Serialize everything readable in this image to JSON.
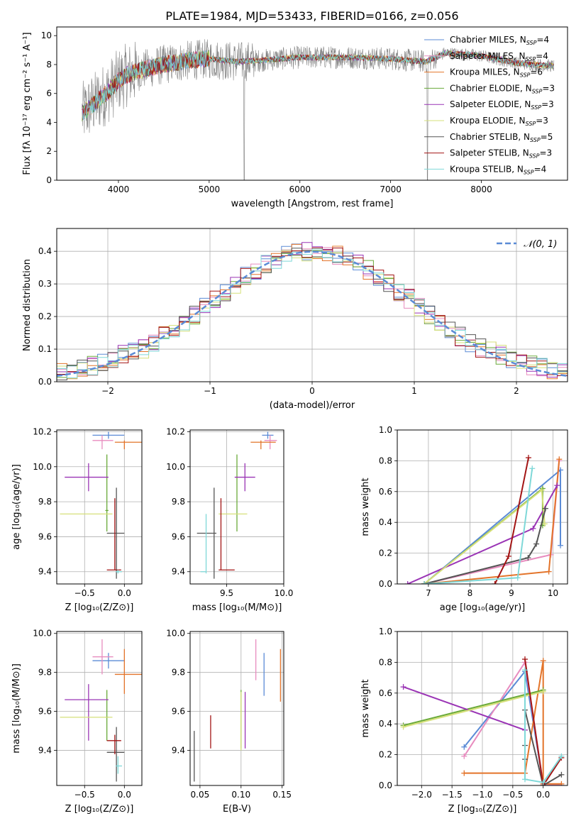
{
  "figure_title": "PLATE=1984, MJD=53433, FIBERID=0166, z=0.056",
  "colors": {
    "Chabrier MILES": "#5b8bd6",
    "Salpeter MILES": "#e88cbf",
    "Kroupa MILES": "#e3742a",
    "Chabrier ELODIE": "#6aaa3a",
    "Salpeter ELODIE": "#9a34b5",
    "Kroupa ELODIE": "#d6e07a",
    "Chabrier STELIB": "#555555",
    "Salpeter STELIB": "#a31515",
    "Kroupa STELIB": "#7fd8d8",
    "data": "#808080",
    "normal": "#5b8bd6",
    "grid": "#b0b0b0"
  },
  "chart_data": [
    {
      "type": "line",
      "panel": "spectrum",
      "xlabel": "wavelength [Angstrom, rest frame]",
      "ylabel": "Flux [fλ 10⁻¹⁷ erg cm⁻² s⁻¹ A⁻¹]",
      "xlim": [
        3320,
        8950
      ],
      "ylim": [
        0,
        10.6
      ],
      "xticks": [
        "4000",
        "5000",
        "6000",
        "7000",
        "8000"
      ],
      "yticks": [
        "0",
        "2",
        "4",
        "6",
        "8",
        "10"
      ],
      "legend": [
        "Chabrier MILES, N_SSP=4",
        "Salpeter MILES, N_SSP=4",
        "Kroupa MILES, N_SSP=6",
        "Chabrier ELODIE, N_SSP=3",
        "Salpeter ELODIE, N_SSP=3",
        "Kroupa ELODIE, N_SSP=3",
        "Chabrier STELIB, N_SSP=5",
        "Salpeter STELIB, N_SSP=3",
        "Kroupa STELIB, N_SSP=4"
      ],
      "legend_position": "right",
      "continuum": {
        "x": [
          3600,
          3750,
          3900,
          4000,
          4100,
          4300,
          4500,
          4800,
          5000,
          5300,
          5600,
          6000,
          6500,
          7000,
          7400,
          7600,
          8000,
          8400,
          8800
        ],
        "y": [
          4.6,
          5.4,
          6.2,
          6.9,
          7.3,
          7.7,
          8.0,
          8.3,
          8.4,
          8.2,
          8.3,
          8.5,
          8.5,
          8.4,
          8.2,
          8.8,
          8.6,
          8.1,
          7.9
        ]
      }
    },
    {
      "type": "histogram",
      "panel": "residuals",
      "xlabel": "(data-model)/error",
      "ylabel": "Normed distribution",
      "xlim": [
        -2.5,
        2.5
      ],
      "ylim": [
        0,
        0.47
      ],
      "xticks": [
        "−2",
        "−1",
        "0",
        "1",
        "2"
      ],
      "yticks": [
        "0.0",
        "0.1",
        "0.2",
        "0.3",
        "0.4"
      ],
      "legend": [
        "𝒩(0, 1)"
      ],
      "legend_position": "top-right",
      "bin_width": 0.1
    },
    {
      "type": "errorbar",
      "panel": "age-vs-Z",
      "xlabel": "Z [log₁₀(Z/Z⊙)]",
      "ylabel": "age  [log₁₀(age/yr)]",
      "xlim": [
        -0.85,
        0.22
      ],
      "ylim": [
        9.33,
        10.21
      ],
      "xticks": [
        "−0.5",
        "0.0"
      ],
      "yticks": [
        "9.4",
        "9.6",
        "9.8",
        "10.0",
        "10.2"
      ],
      "series": [
        {
          "model": "Chabrier MILES",
          "x": -0.2,
          "xerr": [
            0.2,
            0.2
          ],
          "y": 10.18,
          "yerr": [
            0.02,
            0.02
          ]
        },
        {
          "model": "Salpeter MILES",
          "x": -0.28,
          "xerr": [
            0.12,
            0.14
          ],
          "y": 10.15,
          "yerr": [
            0.05,
            0.03
          ]
        },
        {
          "model": "Kroupa MILES",
          "x": 0.0,
          "xerr": [
            0.12,
            0.22
          ],
          "y": 10.14,
          "yerr": [
            0.04,
            0.01
          ]
        },
        {
          "model": "Chabrier ELODIE",
          "x": -0.22,
          "xerr": [
            0.02,
            0.02
          ],
          "y": 9.75,
          "yerr": [
            0.12,
            0.32
          ]
        },
        {
          "model": "Salpeter ELODIE",
          "x": -0.45,
          "xerr": [
            0.3,
            0.25
          ],
          "y": 9.94,
          "yerr": [
            0.08,
            0.08
          ]
        },
        {
          "model": "Kroupa ELODIE",
          "x": -0.48,
          "xerr": [
            0.33,
            0.33
          ],
          "y": 9.73,
          "yerr": [
            0.0,
            0.0
          ]
        },
        {
          "model": "Chabrier STELIB",
          "x": -0.1,
          "xerr": [
            0.12,
            0.1
          ],
          "y": 9.62,
          "yerr": [
            0.26,
            0.26
          ]
        },
        {
          "model": "Salpeter STELIB",
          "x": -0.12,
          "xerr": [
            0.1,
            0.08
          ],
          "y": 9.41,
          "yerr": [
            0.0,
            0.41
          ]
        },
        {
          "model": "Kroupa STELIB",
          "x": -0.08,
          "xerr": [
            0.03,
            0.05
          ],
          "y": 9.4,
          "yerr": [
            0.01,
            0.01
          ]
        }
      ]
    },
    {
      "type": "errorbar",
      "panel": "age-vs-mass",
      "xlabel": "mass [log₁₀(M/M⊙)]",
      "ylabel": "",
      "xlim": [
        9.18,
        10.0
      ],
      "ylim": [
        9.33,
        10.21
      ],
      "xticks": [
        "9.5",
        "10.0"
      ],
      "yticks": [
        "9.4",
        "9.6",
        "9.8",
        "10.0",
        "10.2"
      ],
      "series": [
        {
          "model": "Chabrier MILES",
          "x": 9.86,
          "xerr": [
            0.05,
            0.05
          ],
          "y": 10.18,
          "yerr": [
            0.02,
            0.02
          ]
        },
        {
          "model": "Salpeter MILES",
          "x": 9.88,
          "xerr": [
            0.05,
            0.06
          ],
          "y": 10.15,
          "yerr": [
            0.05,
            0.03
          ]
        },
        {
          "model": "Kroupa MILES",
          "x": 9.8,
          "xerr": [
            0.09,
            0.13
          ],
          "y": 10.14,
          "yerr": [
            0.04,
            0.01
          ]
        },
        {
          "model": "Chabrier ELODIE",
          "x": 9.59,
          "xerr": [
            0.0,
            0.0
          ],
          "y": 9.75,
          "yerr": [
            0.12,
            0.32
          ]
        },
        {
          "model": "Salpeter ELODIE",
          "x": 9.66,
          "xerr": [
            0.09,
            0.09
          ],
          "y": 9.94,
          "yerr": [
            0.08,
            0.08
          ]
        },
        {
          "model": "Kroupa ELODIE",
          "x": 9.57,
          "xerr": [
            0.14,
            0.11
          ],
          "y": 9.73,
          "yerr": [
            0.0,
            0.0
          ]
        },
        {
          "model": "Chabrier STELIB",
          "x": 9.39,
          "xerr": [
            0.15,
            0.02
          ],
          "y": 9.62,
          "yerr": [
            0.26,
            0.26
          ]
        },
        {
          "model": "Salpeter STELIB",
          "x": 9.45,
          "xerr": [
            0.02,
            0.12
          ],
          "y": 9.41,
          "yerr": [
            0.0,
            0.41
          ]
        },
        {
          "model": "Kroupa STELIB",
          "x": 9.32,
          "xerr": [
            0.05,
            0.0
          ],
          "y": 9.4,
          "yerr": [
            0.01,
            0.33
          ]
        }
      ]
    },
    {
      "type": "line",
      "panel": "mass-weight-vs-age",
      "xlabel": "age  [log₁₀(age/yr)]",
      "ylabel": "mass weight",
      "xlim": [
        6.25,
        10.35
      ],
      "ylim": [
        0,
        1
      ],
      "xticks": [
        "7",
        "8",
        "9",
        "10"
      ],
      "yticks": [
        "0.0",
        "0.2",
        "0.4",
        "0.6",
        "0.8",
        "1.0"
      ],
      "series": [
        {
          "model": "Chabrier MILES",
          "x": [
            6.9,
            10.18,
            10.18
          ],
          "y": [
            0.0,
            0.74,
            0.25
          ]
        },
        {
          "model": "Salpeter MILES",
          "x": [
            6.9,
            9.95,
            10.15
          ],
          "y": [
            0.0,
            0.19,
            0.8
          ]
        },
        {
          "model": "Kroupa MILES",
          "x": [
            6.9,
            9.9,
            10.15
          ],
          "y": [
            0.0,
            0.08,
            0.81
          ]
        },
        {
          "model": "Chabrier ELODIE",
          "x": [
            6.9,
            9.75,
            9.75
          ],
          "y": [
            0.0,
            0.62,
            0.38
          ]
        },
        {
          "model": "Salpeter ELODIE",
          "x": [
            6.5,
            9.52,
            10.1
          ],
          "y": [
            0.0,
            0.36,
            0.64
          ]
        },
        {
          "model": "Kroupa ELODIE",
          "x": [
            6.9,
            9.73,
            9.8
          ],
          "y": [
            0.0,
            0.61,
            0.39
          ]
        },
        {
          "model": "Chabrier STELIB",
          "x": [
            6.9,
            9.4,
            9.6,
            9.82
          ],
          "y": [
            0.0,
            0.17,
            0.26,
            0.49
          ]
        },
        {
          "model": "Salpeter STELIB",
          "x": [
            8.6,
            8.93,
            9.41
          ],
          "y": [
            0.0,
            0.18,
            0.82
          ]
        },
        {
          "model": "Kroupa STELIB",
          "x": [
            6.9,
            9.15,
            9.5
          ],
          "y": [
            0.0,
            0.04,
            0.75
          ]
        }
      ]
    },
    {
      "type": "errorbar",
      "panel": "mass-vs-Z",
      "xlabel": "Z [log₁₀(Z/Z⊙)]",
      "ylabel": "mass [log₁₀(M/M⊙)]",
      "xlim": [
        -0.85,
        0.22
      ],
      "ylim": [
        9.22,
        10.01
      ],
      "xticks": [
        "−0.5",
        "0.0"
      ],
      "yticks": [
        "9.4",
        "9.6",
        "9.8",
        "10.0"
      ],
      "series": [
        {
          "model": "Chabrier MILES",
          "x": -0.2,
          "xerr": [
            0.2,
            0.2
          ],
          "y": 9.86,
          "yerr": [
            0.04,
            0.04
          ]
        },
        {
          "model": "Salpeter MILES",
          "x": -0.28,
          "xerr": [
            0.12,
            0.14
          ],
          "y": 9.88,
          "yerr": [
            0.09,
            0.09
          ]
        },
        {
          "model": "Kroupa MILES",
          "x": 0.0,
          "xerr": [
            0.12,
            0.22
          ],
          "y": 9.79,
          "yerr": [
            0.1,
            0.13
          ]
        },
        {
          "model": "Chabrier ELODIE",
          "x": -0.22,
          "xerr": [
            0.02,
            0.02
          ],
          "y": 9.57,
          "yerr": [
            0.12,
            0.14
          ]
        },
        {
          "model": "Salpeter ELODIE",
          "x": -0.45,
          "xerr": [
            0.3,
            0.25
          ],
          "y": 9.66,
          "yerr": [
            0.21,
            0.08
          ]
        },
        {
          "model": "Kroupa ELODIE",
          "x": -0.48,
          "xerr": [
            0.33,
            0.33
          ],
          "y": 9.57,
          "yerr": [
            0.0,
            0.0
          ]
        },
        {
          "model": "Chabrier STELIB",
          "x": -0.1,
          "xerr": [
            0.12,
            0.1
          ],
          "y": 9.39,
          "yerr": [
            0.15,
            0.13
          ]
        },
        {
          "model": "Salpeter STELIB",
          "x": -0.12,
          "xerr": [
            0.1,
            0.08
          ],
          "y": 9.45,
          "yerr": [
            0.07,
            0.03
          ]
        },
        {
          "model": "Kroupa STELIB",
          "x": -0.08,
          "xerr": [
            0.03,
            0.05
          ],
          "y": 9.32,
          "yerr": [
            0.04,
            0.05
          ]
        }
      ]
    },
    {
      "type": "errorbar",
      "panel": "mass-vs-ebv",
      "xlabel": "E(B-V)",
      "ylabel": "",
      "xlim": [
        0.038,
        0.152
      ],
      "ylim": [
        9.22,
        10.01
      ],
      "xticks": [
        "0.05",
        "0.10",
        "0.15"
      ],
      "yticks": [
        "9.4",
        "9.6",
        "9.8",
        "10.0"
      ],
      "series": [
        {
          "model": "Chabrier MILES",
          "x": 0.128,
          "y": 9.79,
          "yerr": [
            0.11,
            0.11
          ]
        },
        {
          "model": "Salpeter MILES",
          "x": 0.118,
          "y": 9.86,
          "yerr": [
            0.1,
            0.11
          ]
        },
        {
          "model": "Kroupa MILES",
          "x": 0.148,
          "y": 9.79,
          "yerr": [
            0.14,
            0.13
          ]
        },
        {
          "model": "Chabrier ELODIE",
          "x": 0.1,
          "y": 9.57,
          "yerr": [
            0.16,
            0.14
          ]
        },
        {
          "model": "Salpeter ELODIE",
          "x": 0.105,
          "y": 9.55,
          "yerr": [
            0.14,
            0.15
          ]
        },
        {
          "model": "Kroupa ELODIE",
          "x": 0.1,
          "y": 9.55,
          "yerr": [
            0.15,
            0.15
          ]
        },
        {
          "model": "Chabrier STELIB",
          "x": 0.043,
          "y": 9.37,
          "yerr": [
            0.13,
            0.13
          ]
        },
        {
          "model": "Salpeter STELIB",
          "x": 0.063,
          "y": 9.49,
          "yerr": [
            0.08,
            0.09
          ]
        }
      ]
    },
    {
      "type": "line",
      "panel": "mass-weight-vs-Z",
      "xlabel": "Z [log₁₀(Z/Z⊙)]",
      "ylabel": "mass weight",
      "xlim": [
        -2.4,
        0.4
      ],
      "ylim": [
        0,
        1
      ],
      "xticks": [
        "−2.0",
        "−1.5",
        "−1.0",
        "−0.5",
        "0.0"
      ],
      "yticks": [
        "0.0",
        "0.2",
        "0.4",
        "0.6",
        "0.8",
        "1.0"
      ],
      "series": [
        {
          "model": "Chabrier MILES",
          "x": [
            -1.3,
            -0.3,
            0.0,
            0.3
          ],
          "y": [
            0.25,
            0.74,
            0.01,
            0.0
          ]
        },
        {
          "model": "Salpeter MILES",
          "x": [
            -1.3,
            -0.3,
            0.0,
            0.3
          ],
          "y": [
            0.19,
            0.8,
            0.01,
            0.0
          ]
        },
        {
          "model": "Kroupa MILES",
          "x": [
            -1.3,
            -0.3,
            -0.3,
            0.0,
            0.0,
            0.3
          ],
          "y": [
            0.08,
            0.08,
            0.08,
            0.81,
            0.01,
            0.01
          ]
        },
        {
          "model": "Chabrier ELODIE",
          "x": [
            -2.3,
            0.0
          ],
          "y": [
            0.39,
            0.62
          ]
        },
        {
          "model": "Salpeter ELODIE",
          "x": [
            -2.3,
            -0.3
          ],
          "y": [
            0.64,
            0.36
          ]
        },
        {
          "model": "Kroupa ELODIE",
          "x": [
            -2.3,
            0.0
          ],
          "y": [
            0.38,
            0.61
          ]
        },
        {
          "model": "Chabrier STELIB",
          "x": [
            -0.3,
            -0.3,
            -0.3,
            0.0,
            0.3
          ],
          "y": [
            0.17,
            0.26,
            0.49,
            0.0,
            0.07
          ]
        },
        {
          "model": "Salpeter STELIB",
          "x": [
            -0.3,
            0.0,
            0.3
          ],
          "y": [
            0.82,
            0.0,
            0.18
          ]
        },
        {
          "model": "Kroupa STELIB",
          "x": [
            -0.3,
            -0.3,
            0.0,
            0.3
          ],
          "y": [
            0.75,
            0.04,
            0.02,
            0.19
          ]
        }
      ]
    }
  ]
}
